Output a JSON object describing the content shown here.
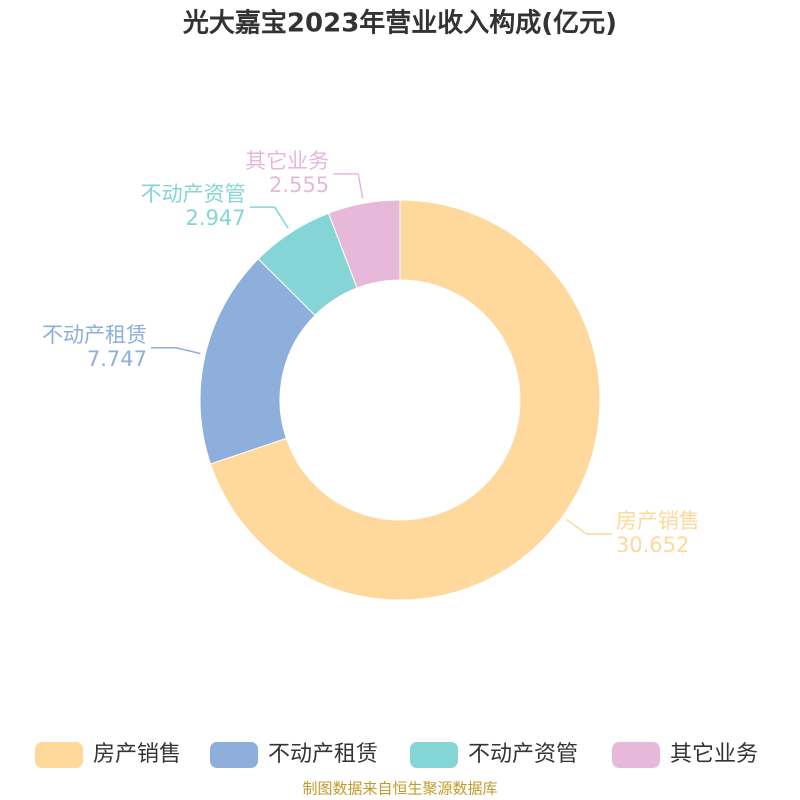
{
  "chart_data": {
    "type": "donut",
    "title": "光大嘉宝2023年营业收入构成(亿元)",
    "categories": [
      "房产销售",
      "不动产租赁",
      "不动产资管",
      "其它业务"
    ],
    "values": [
      30.652,
      7.747,
      2.947,
      2.555
    ],
    "colors": [
      "#ffd89b",
      "#8eaedb",
      "#85d5d7",
      "#e6b9da"
    ],
    "legend": "bottom",
    "source": "制图数据来自恒生聚源数据库"
  }
}
